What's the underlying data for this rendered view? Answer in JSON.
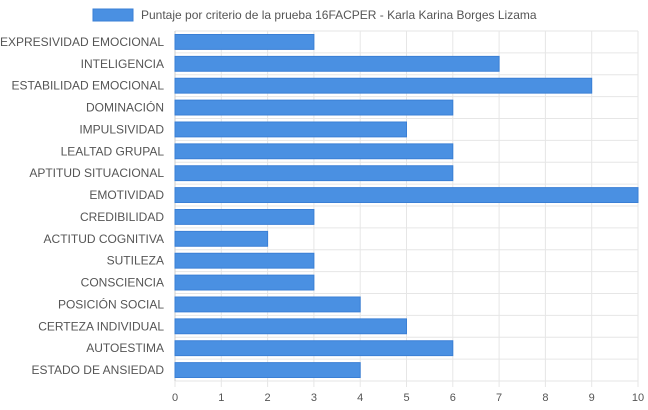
{
  "chart_data": {
    "type": "bar",
    "orientation": "horizontal",
    "categories": [
      "EXPRESIVIDAD EMOCIONAL",
      "INTELIGENCIA",
      "ESTABILIDAD EMOCIONAL",
      "DOMINACIÓN",
      "IMPULSIVIDAD",
      "LEALTAD GRUPAL",
      "APTITUD SITUACIONAL",
      "EMOTIVIDAD",
      "CREDIBILIDAD",
      "ACTITUD COGNITIVA",
      "SUTILEZA",
      "CONSCIENCIA",
      "POSICIÓN SOCIAL",
      "CERTEZA INDIVIDUAL",
      "AUTOESTIMA",
      "ESTADO DE ANSIEDAD"
    ],
    "series": [
      {
        "name": "Puntaje por criterio de la prueba 16FACPER - Karla Karina Borges Lizama",
        "values": [
          3,
          7,
          9,
          6,
          5,
          6,
          6,
          10,
          3,
          2,
          3,
          3,
          4,
          5,
          6,
          4
        ],
        "color": "#4a90e2",
        "border_color": "#3a7fd5"
      }
    ],
    "xlim": [
      0,
      10
    ],
    "x_ticks": [
      "0",
      "1",
      "2",
      "3",
      "4",
      "5",
      "6",
      "7",
      "8",
      "9",
      "10"
    ],
    "grid": true,
    "legend_position": "top-center"
  }
}
